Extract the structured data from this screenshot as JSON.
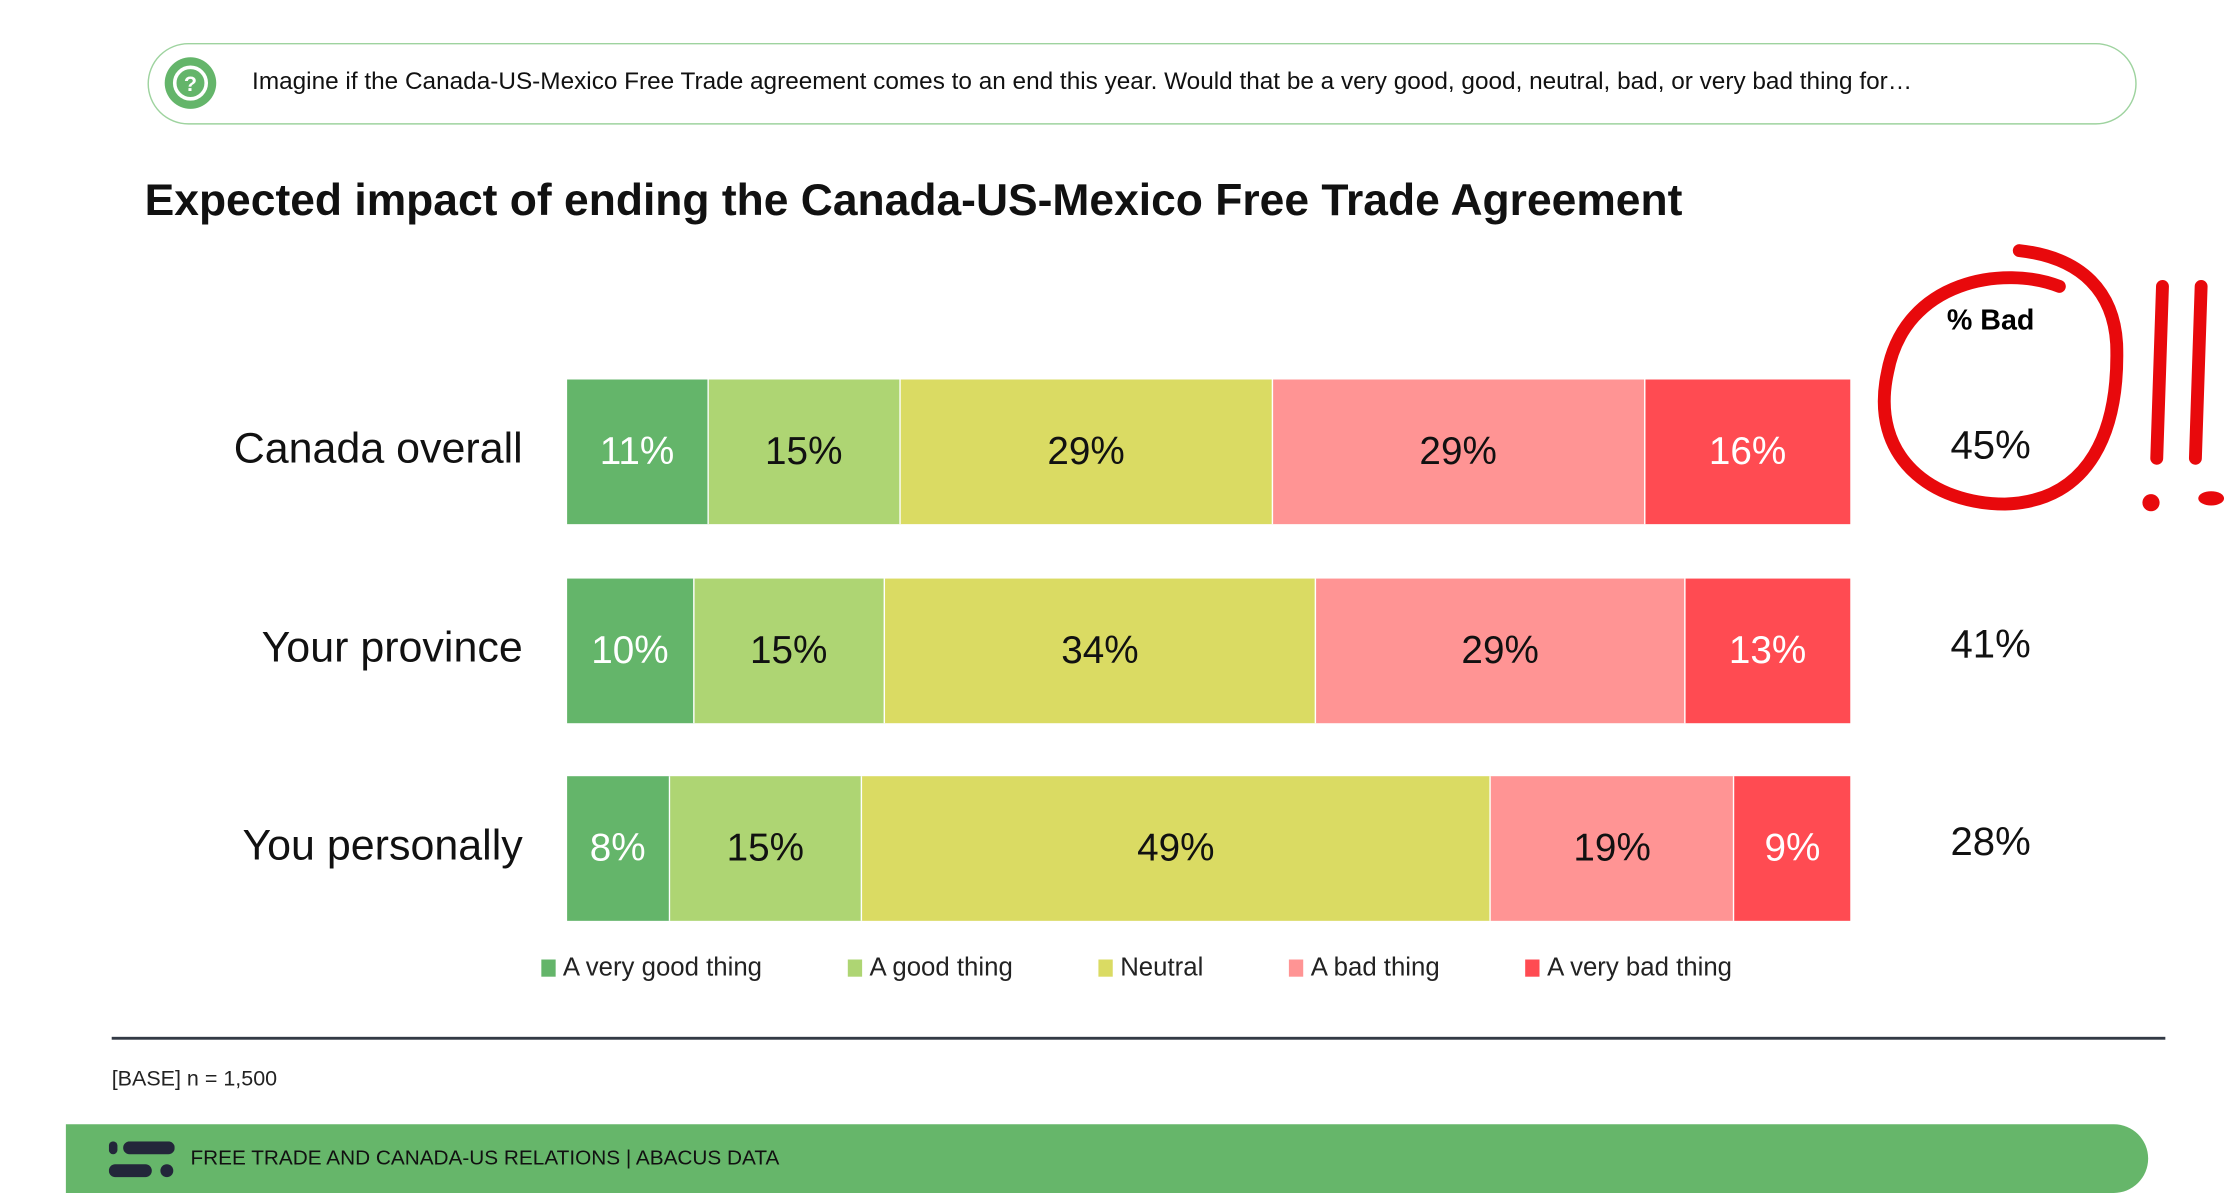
{
  "question": {
    "icon": "question-circle-icon",
    "text": "Imagine if the Canada-US-Mexico Free Trade agreement comes to an end this year. Would that be a very good, good, neutral, bad, or very bad thing for…"
  },
  "chart_data": {
    "type": "bar",
    "orientation": "horizontal-stacked-100",
    "title": "Expected impact of ending the Canada-US-Mexico Free Trade Agreement",
    "categories": [
      "Canada overall",
      "Your province",
      "You personally"
    ],
    "series": [
      {
        "name": "A very good thing",
        "color": "#64b56a",
        "text_color": "#ffffff",
        "values": [
          11,
          10,
          8
        ]
      },
      {
        "name": "A good thing",
        "color": "#aed573",
        "text_color": "#111111",
        "values": [
          15,
          15,
          15
        ]
      },
      {
        "name": "Neutral",
        "color": "#dadb63",
        "text_color": "#111111",
        "values": [
          29,
          34,
          49
        ]
      },
      {
        "name": "A bad thing",
        "color": "#ff9494",
        "text_color": "#111111",
        "values": [
          29,
          29,
          19
        ]
      },
      {
        "name": "A very bad thing",
        "color": "#ff4b52",
        "text_color": "#ffffff",
        "values": [
          16,
          13,
          9
        ]
      }
    ],
    "value_suffix": "%",
    "legend_position": "bottom",
    "summary_column": {
      "header": "% Bad",
      "values": [
        "45%",
        "41%",
        "28%"
      ]
    }
  },
  "base_note": "[BASE] n = 1,500",
  "footer": {
    "text": "FREE TRADE AND CANADA-US RELATIONS  |  ABACUS DATA",
    "color": "#66b66a",
    "logo": "abacus-logo-icon"
  },
  "annotation": {
    "color": "#e8090c",
    "marks": "red circle around 45% and two exclamation marks"
  }
}
